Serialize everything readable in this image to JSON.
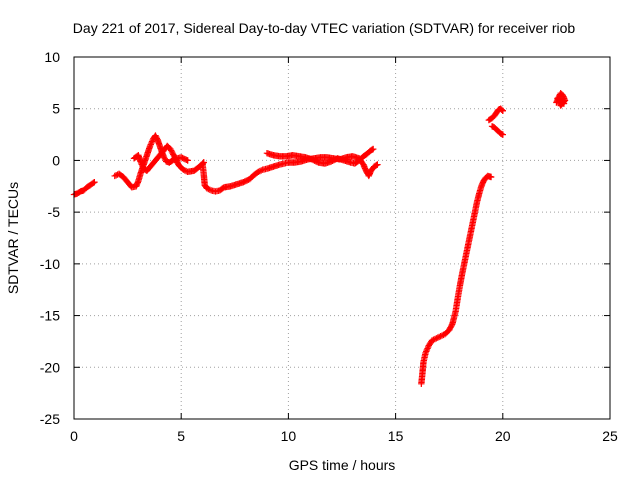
{
  "chart_data": {
    "type": "scatter",
    "title": "Day 221 of 2017, Sidereal Day-to-day VTEC variation (SDTVAR) for receiver riob",
    "xlabel": "GPS time / hours",
    "ylabel": "SDTVAR / TECUs",
    "xlim": [
      0,
      25
    ],
    "ylim": [
      -25,
      10
    ],
    "xticks": [
      "0",
      "5",
      "10",
      "15",
      "20",
      "25"
    ],
    "yticks": [
      "10",
      "5",
      "0",
      "-5",
      "-10",
      "-15",
      "-20",
      "-25"
    ],
    "grid": true,
    "legend": "none",
    "marker": "plus",
    "color": "#ff0000",
    "series": [
      {
        "name": "riob",
        "segments": [
          [
            [
              0.0,
              -3.3
            ],
            [
              0.15,
              -3.2
            ],
            [
              0.3,
              -3.0
            ],
            [
              0.45,
              -2.9
            ],
            [
              0.6,
              -2.6
            ],
            [
              0.75,
              -2.4
            ],
            [
              0.95,
              -2.1
            ]
          ],
          [
            [
              1.9,
              -1.5
            ],
            [
              2.1,
              -1.3
            ],
            [
              2.3,
              -1.6
            ],
            [
              2.5,
              -2.1
            ],
            [
              2.7,
              -2.6
            ],
            [
              2.9,
              -2.5
            ],
            [
              3.0,
              -2.0
            ],
            [
              3.1,
              -1.3
            ],
            [
              3.25,
              -0.4
            ],
            [
              3.4,
              0.5
            ],
            [
              3.55,
              1.4
            ],
            [
              3.7,
              2.1
            ],
            [
              3.8,
              2.4
            ],
            [
              3.9,
              2.0
            ],
            [
              4.0,
              1.4
            ],
            [
              4.1,
              0.8
            ],
            [
              4.2,
              0.3
            ],
            [
              4.3,
              -0.1
            ],
            [
              4.45,
              -0.2
            ],
            [
              4.6,
              0.0
            ],
            [
              4.8,
              0.2
            ],
            [
              5.0,
              0.3
            ],
            [
              5.3,
              0.0
            ]
          ],
          [
            [
              2.8,
              0.2
            ],
            [
              3.0,
              0.5
            ],
            [
              3.1,
              -0.1
            ],
            [
              3.25,
              -0.8
            ],
            [
              3.4,
              -1.0
            ],
            [
              3.6,
              -0.5
            ],
            [
              3.8,
              0.0
            ],
            [
              4.0,
              0.5
            ],
            [
              4.2,
              1.0
            ],
            [
              4.35,
              1.4
            ],
            [
              4.5,
              1.1
            ],
            [
              4.6,
              0.7
            ],
            [
              4.75,
              0.1
            ],
            [
              4.9,
              -0.5
            ],
            [
              5.1,
              -0.9
            ],
            [
              5.3,
              -1.1
            ],
            [
              5.6,
              -1.0
            ],
            [
              5.85,
              -0.6
            ],
            [
              6.05,
              -0.2
            ]
          ],
          [
            [
              6.0,
              -0.4
            ],
            [
              6.05,
              -1.3
            ],
            [
              6.1,
              -2.4
            ],
            [
              6.2,
              -2.7
            ],
            [
              6.4,
              -2.9
            ],
            [
              6.6,
              -3.0
            ],
            [
              6.8,
              -2.9
            ],
            [
              7.0,
              -2.6
            ],
            [
              7.3,
              -2.5
            ],
            [
              7.6,
              -2.3
            ],
            [
              7.9,
              -2.1
            ],
            [
              8.2,
              -1.8
            ],
            [
              8.4,
              -1.4
            ],
            [
              8.6,
              -1.1
            ],
            [
              8.8,
              -0.9
            ],
            [
              9.0,
              -0.8
            ],
            [
              9.3,
              -0.6
            ],
            [
              9.6,
              -0.4
            ],
            [
              10.0,
              -0.2
            ],
            [
              10.3,
              -0.2
            ],
            [
              10.6,
              -0.1
            ],
            [
              10.9,
              0.1
            ],
            [
              11.2,
              0.2
            ],
            [
              11.5,
              0.3
            ],
            [
              11.8,
              0.3
            ],
            [
              12.1,
              0.2
            ],
            [
              12.4,
              0.1
            ],
            [
              12.7,
              0.3
            ],
            [
              13.0,
              0.4
            ],
            [
              13.3,
              0.2
            ],
            [
              13.5,
              -0.4
            ],
            [
              13.6,
              -0.9
            ],
            [
              13.75,
              -1.5
            ],
            [
              13.85,
              -1.0
            ],
            [
              14.0,
              -0.6
            ],
            [
              14.15,
              -0.4
            ]
          ],
          [
            [
              9.0,
              0.7
            ],
            [
              9.3,
              0.5
            ],
            [
              9.6,
              0.4
            ],
            [
              9.9,
              0.4
            ],
            [
              10.2,
              0.5
            ],
            [
              10.5,
              0.4
            ],
            [
              10.8,
              0.3
            ],
            [
              11.1,
              0.1
            ],
            [
              11.4,
              -0.2
            ],
            [
              11.7,
              -0.3
            ],
            [
              12.0,
              -0.1
            ],
            [
              12.3,
              0.2
            ],
            [
              12.6,
              0.0
            ],
            [
              12.9,
              -0.2
            ],
            [
              13.1,
              -0.3
            ],
            [
              13.3,
              0.0
            ],
            [
              13.5,
              0.4
            ],
            [
              13.65,
              0.6
            ],
            [
              13.8,
              0.9
            ],
            [
              13.95,
              1.1
            ]
          ],
          [
            [
              16.2,
              -21.6
            ],
            [
              16.25,
              -20.6
            ],
            [
              16.3,
              -19.5
            ],
            [
              16.4,
              -18.6
            ],
            [
              16.55,
              -17.9
            ],
            [
              16.7,
              -17.4
            ],
            [
              16.9,
              -17.2
            ],
            [
              17.1,
              -17.0
            ],
            [
              17.3,
              -16.8
            ],
            [
              17.5,
              -16.4
            ],
            [
              17.65,
              -15.8
            ],
            [
              17.8,
              -14.6
            ],
            [
              17.9,
              -13.3
            ],
            [
              18.0,
              -12.1
            ],
            [
              18.1,
              -11.0
            ],
            [
              18.2,
              -10.0
            ],
            [
              18.3,
              -9.0
            ],
            [
              18.4,
              -8.0
            ],
            [
              18.5,
              -7.0
            ],
            [
              18.6,
              -6.0
            ],
            [
              18.7,
              -5.0
            ],
            [
              18.8,
              -4.0
            ],
            [
              18.9,
              -3.2
            ],
            [
              19.0,
              -2.5
            ],
            [
              19.1,
              -2.0
            ],
            [
              19.2,
              -1.7
            ],
            [
              19.3,
              -1.5
            ],
            [
              19.45,
              -1.6
            ]
          ],
          [
            [
              19.35,
              3.9
            ],
            [
              19.5,
              4.1
            ],
            [
              19.6,
              4.3
            ],
            [
              19.7,
              4.6
            ],
            [
              19.8,
              4.9
            ],
            [
              19.9,
              5.0
            ],
            [
              20.0,
              4.8
            ]
          ],
          [
            [
              19.5,
              3.3
            ],
            [
              19.6,
              3.2
            ],
            [
              19.7,
              3.0
            ],
            [
              19.8,
              2.8
            ],
            [
              19.9,
              2.6
            ],
            [
              20.0,
              2.5
            ]
          ],
          [
            [
              22.5,
              5.6
            ],
            [
              22.6,
              6.1
            ],
            [
              22.7,
              6.5
            ],
            [
              22.8,
              6.3
            ],
            [
              22.9,
              5.8
            ],
            [
              22.7,
              5.3
            ],
            [
              22.55,
              6.0
            ],
            [
              22.85,
              5.5
            ]
          ]
        ]
      }
    ]
  }
}
